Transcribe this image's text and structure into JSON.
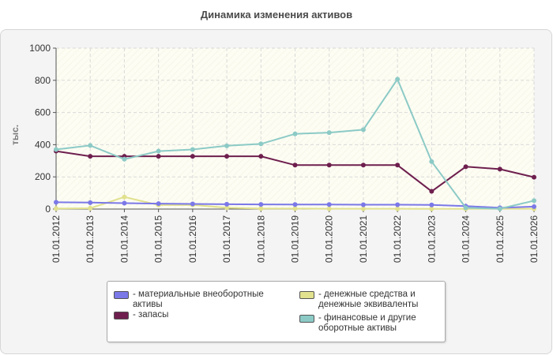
{
  "title": "Динамика изменения активов",
  "chart_data": {
    "type": "line",
    "title": "Динамика изменения активов",
    "xlabel": "",
    "ylabel": "тыс.",
    "ylim": [
      0,
      1000
    ],
    "yticks": [
      0,
      200,
      400,
      600,
      800,
      1000
    ],
    "grid": true,
    "legend_position": "bottom",
    "x": [
      "01.01.2012",
      "01.01.2013",
      "01.01.2014",
      "01.01.2015",
      "01.01.2016",
      "01.01.2017",
      "01.01.2018",
      "01.01.2019",
      "01.01.2020",
      "01.01.2021",
      "01.01.2022",
      "01.01.2023",
      "01.01.2024",
      "01.01.2025",
      "01.01.2026"
    ],
    "series": [
      {
        "name": "материальные внеоборотные активы",
        "color": "#7b78e8",
        "values": [
          42,
          40,
          37,
          34,
          32,
          30,
          29,
          28,
          28,
          27,
          27,
          26,
          18,
          8,
          15
        ]
      },
      {
        "name": "запасы",
        "color": "#6e1f4e",
        "values": [
          360,
          328,
          328,
          328,
          328,
          328,
          328,
          273,
          273,
          273,
          273,
          110,
          263,
          248,
          198
        ]
      },
      {
        "name": "денежные средства и денежные эквиваленты",
        "color": "#e1e18e",
        "values": [
          3,
          5,
          75,
          25,
          26,
          8,
          3,
          3,
          2,
          2,
          2,
          1,
          1,
          2,
          2
        ]
      },
      {
        "name": "финансовые и другие оборотные активы",
        "color": "#8ccac6",
        "values": [
          370,
          395,
          310,
          360,
          370,
          393,
          405,
          467,
          475,
          493,
          807,
          295,
          8,
          2,
          52
        ]
      }
    ]
  }
}
